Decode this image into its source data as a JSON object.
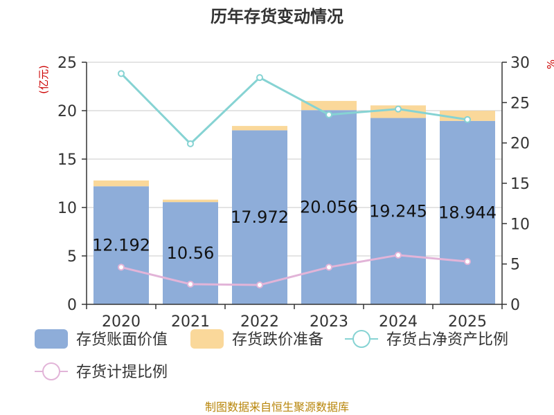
{
  "chart_data": {
    "type": "bar",
    "title": "历年存货变动情况",
    "categories": [
      "2020",
      "2021",
      "2022",
      "2023",
      "2024",
      "2025"
    ],
    "y_left": {
      "unit": "(亿元)",
      "ylim": [
        0,
        25
      ],
      "ticks": [
        0,
        5,
        10,
        15,
        20,
        25
      ]
    },
    "y_right": {
      "unit": "%",
      "ylim": [
        0,
        30
      ],
      "ticks": [
        0,
        5,
        10,
        15,
        20,
        25,
        30
      ]
    },
    "series": [
      {
        "name": "存货账面价值",
        "type": "bar",
        "stack": "total",
        "axis": "left",
        "color": "#8eadd9",
        "values": [
          12.192,
          10.56,
          17.972,
          20.056,
          19.245,
          18.944
        ],
        "labels": [
          "12.192",
          "10.56",
          "17.972",
          "20.056",
          "19.245",
          "18.944"
        ]
      },
      {
        "name": "存货跌价准备",
        "type": "bar",
        "stack": "total",
        "axis": "left",
        "color": "#fad89a",
        "values": [
          0.6,
          0.25,
          0.45,
          0.95,
          1.3,
          1.05
        ]
      },
      {
        "name": "存货占净资产比例",
        "type": "line",
        "axis": "right",
        "color": "#86d3d3",
        "values": [
          28.6,
          19.9,
          28.1,
          23.5,
          24.2,
          22.9
        ]
      },
      {
        "name": "存货计提比例",
        "type": "line",
        "axis": "right",
        "color": "#e2b4d8",
        "values": [
          4.6,
          2.5,
          2.4,
          4.6,
          6.1,
          5.3
        ]
      }
    ],
    "grid": true,
    "legend": "bottom"
  },
  "footer": {
    "source": "制图数据来自恒生聚源数据库"
  }
}
